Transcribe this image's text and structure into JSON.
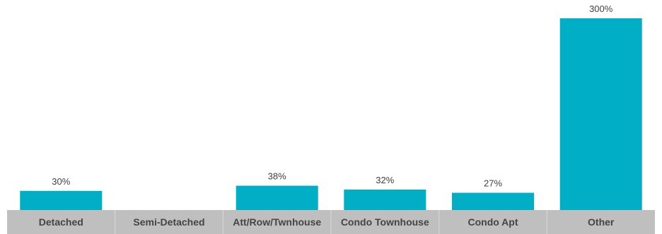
{
  "chart_data": {
    "type": "bar",
    "categories": [
      "Detached",
      "Semi-Detached",
      "Att/Row/Twnhouse",
      "Condo Townhouse",
      "Condo Apt",
      "Other"
    ],
    "values": [
      30,
      null,
      38,
      32,
      27,
      300
    ],
    "value_labels": [
      "30%",
      "",
      "38%",
      "32%",
      "27%",
      "300%"
    ],
    "title": "",
    "xlabel": "",
    "ylabel": "",
    "ylim": [
      0,
      300
    ],
    "grid": false,
    "legend": "none",
    "colors": {
      "bar": "#00afc6",
      "axis_band": "#bfbfbf",
      "label_text": "#444444"
    }
  }
}
